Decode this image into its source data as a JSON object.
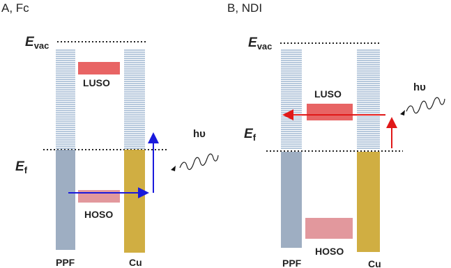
{
  "panels": [
    {
      "title": "A, Fc",
      "vacuum_main": "E",
      "vacuum_sub": "vac",
      "fermi_main": "E",
      "fermi_sub": "f",
      "left_label": "PPF",
      "right_label": "Cu",
      "upper_orbital_label": "LUSO",
      "lower_orbital_label": "HOSO",
      "photon_label": "hυ"
    },
    {
      "title": "B, NDI",
      "vacuum_main": "E",
      "vacuum_sub": "vac",
      "fermi_main": "E",
      "fermi_sub": "f",
      "left_label": "PPF",
      "right_label": "Cu",
      "upper_orbital_label": "LUSO",
      "lower_orbital_label": "HOSO",
      "photon_label": "hυ"
    }
  ],
  "colors": {
    "empty_band": "#8aa6c8",
    "ppf_filled": "#7f93ad",
    "cu_filled": "#c9a227",
    "luso": "#e03030",
    "hoso": "#d9777d",
    "blue_arrow": "#1a1adc",
    "red_arrow": "#e01818",
    "text": "#222222"
  }
}
